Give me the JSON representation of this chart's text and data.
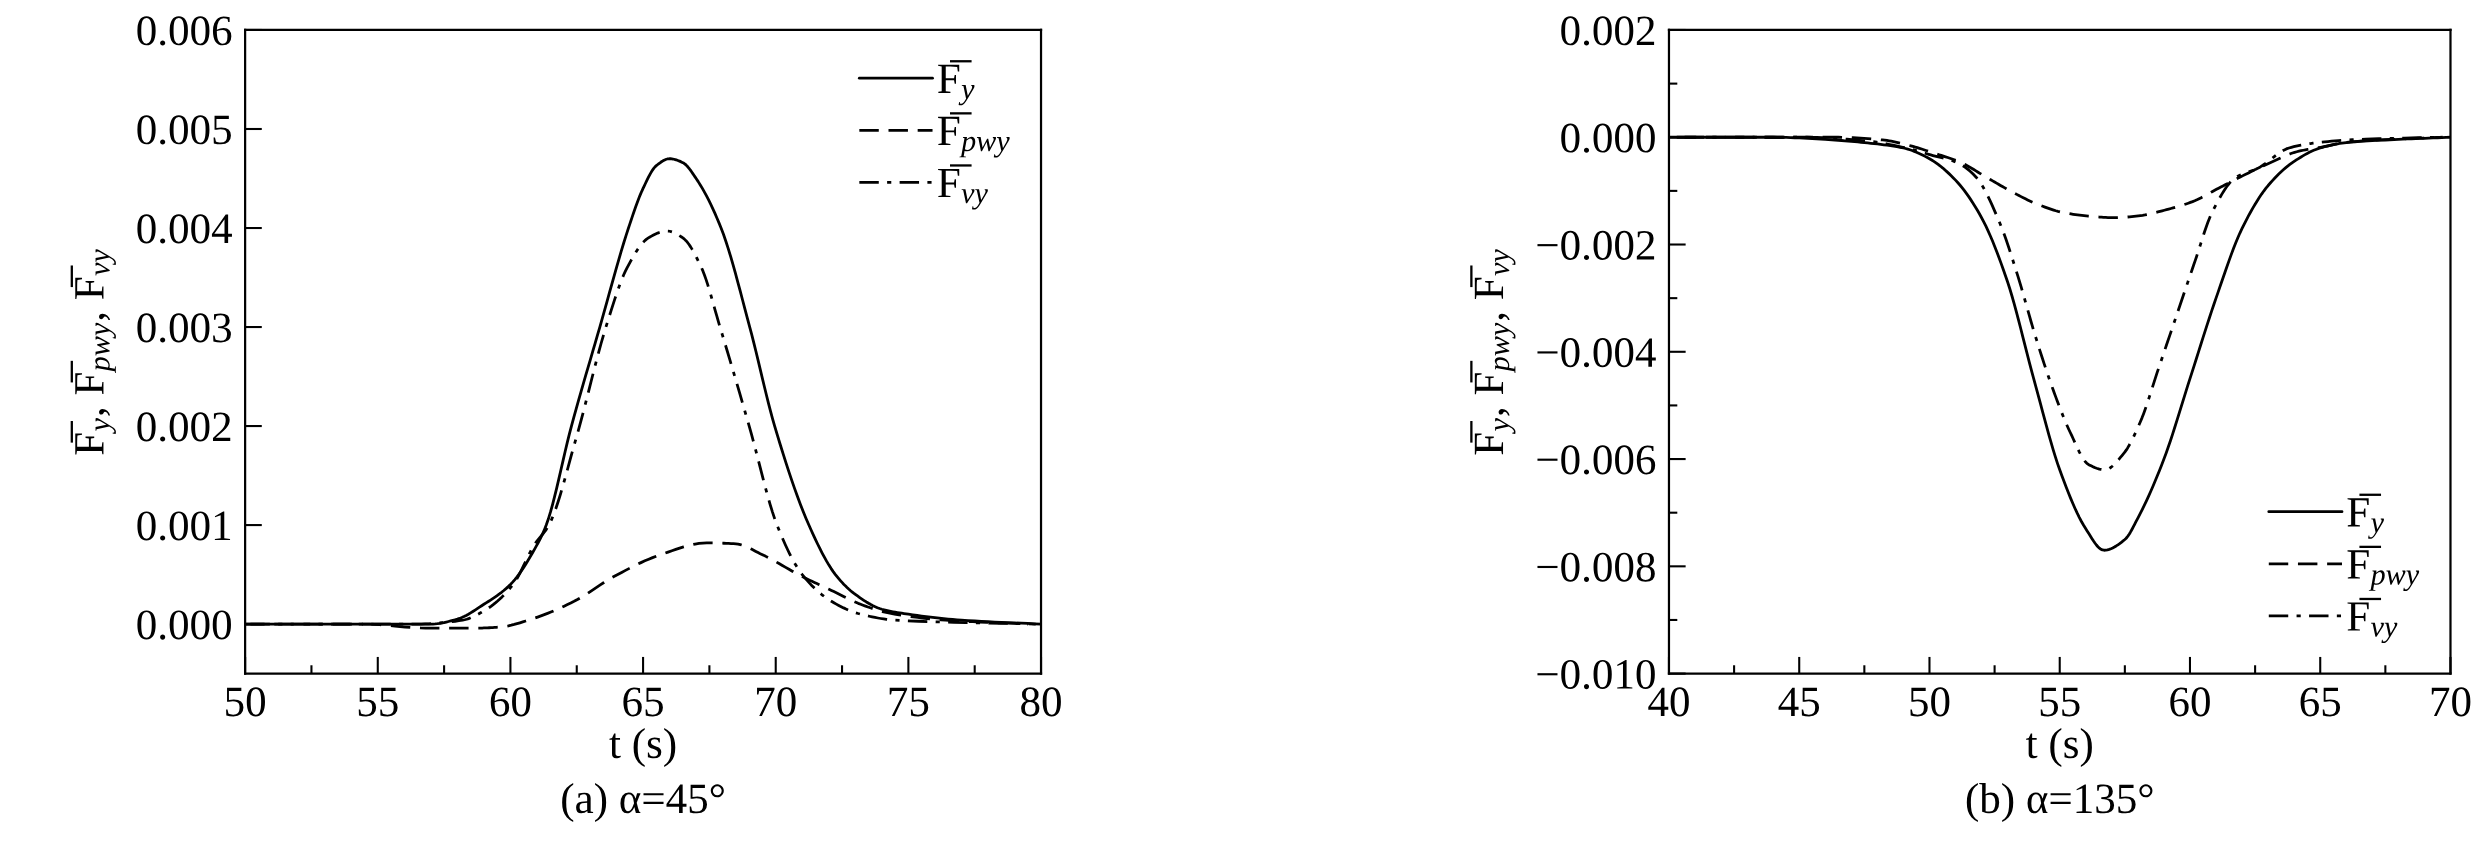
{
  "chart_data": [
    {
      "type": "line",
      "title": "(a) α=45°",
      "xlabel": "t (s)",
      "ylabel": "F̅$_{y}$, F̅$_{pwy}$, F̅$_{vy}$",
      "legend": "top right",
      "xlim": [
        50,
        80
      ],
      "ylim": [
        -0.0005,
        0.006
      ],
      "xticks": [
        50,
        {
          "value": 52.5,
          "label": null
        },
        55,
        {
          "value": 57.5,
          "label": null
        },
        60,
        {
          "value": 62.5,
          "label": null
        },
        65,
        {
          "value": 67.5,
          "label": null
        },
        70,
        {
          "value": 72.5,
          "label": null
        },
        75,
        {
          "value": 77.5,
          "label": null
        },
        80
      ],
      "yticks": [
        {
          "value": 0,
          "label": "0.000"
        },
        {
          "value": 0.001,
          "label": "0.001"
        },
        {
          "value": 0.002,
          "label": "0.002"
        },
        {
          "value": 0.003,
          "label": "0.003"
        },
        {
          "value": 0.004,
          "label": "0.004"
        },
        {
          "value": 0.005,
          "label": "0.005"
        },
        {
          "value": 0.006,
          "label": "0.006"
        }
      ],
      "series": [
        {
          "name": "F̅$_{y}$",
          "color": "#000000",
          "line_style": "solid",
          "x": [
            50,
            55,
            57,
            58,
            59,
            60,
            61,
            61.35,
            62.3,
            63.37,
            64.45,
            65.0,
            65.5,
            66.0,
            66.5,
            67.0,
            67.94,
            69.02,
            69.96,
            71.25,
            72.25,
            73,
            74,
            75,
            77,
            80
          ],
          "values": [
            0,
            0,
            0,
            5e-05,
            0.0002,
            0.0004,
            0.0008,
            0.001,
            0.002,
            0.003,
            0.004,
            0.0044,
            0.00463,
            0.0047,
            0.00466,
            0.0045,
            0.004,
            0.003,
            0.002,
            0.001,
            0.0005,
            0.0003,
            0.00015,
            0.0001,
            4e-05,
            0
          ]
        },
        {
          "name": "F̅$_{pwy}$",
          "color": "#000000",
          "line_style": "dashed",
          "x": [
            50,
            54.5,
            56.8,
            58.8,
            59.6,
            60.9,
            62.4,
            63.9,
            65.65,
            67.4,
            68.5,
            69.5,
            71.0,
            72.1,
            73.2,
            74.3,
            76.4,
            79.5
          ],
          "values": [
            0,
            0,
            -4e-05,
            -4e-05,
            -3e-05,
            6e-05,
            0.00023,
            0.00048,
            0.0007,
            0.00082,
            0.00081,
            0.0007,
            0.00048,
            0.00034,
            0.0002,
            0.00011,
            4e-05,
            0
          ]
        },
        {
          "name": "F̅$_{vy}$",
          "color": "#000000",
          "line_style": "dashdot",
          "x": [
            50.2,
            56.5,
            58.2,
            59.1,
            60.1,
            60.9,
            61.45,
            62.5,
            63.6,
            64.4,
            65.2,
            65.9,
            66.5,
            67.2,
            67.9,
            69.0,
            70.05,
            71.0,
            72.1,
            73.2,
            74.5,
            79.8
          ],
          "values": [
            0,
            0,
            4e-05,
            0.00015,
            0.0004,
            0.0008,
            0.001,
            0.0019,
            0.003,
            0.0036,
            0.0039,
            0.00397,
            0.0039,
            0.0036,
            0.003,
            0.002,
            0.001,
            0.0005,
            0.00023,
            0.0001,
            4e-05,
            0
          ]
        }
      ]
    },
    {
      "type": "line",
      "title": "(b) α=135°",
      "xlabel": "t (s)",
      "ylabel": "F̅$_{y}$, F̅$_{pwy}$, F̅$_{vy}$",
      "legend": "bottom right",
      "xlim": [
        40,
        70
      ],
      "ylim": [
        -0.01,
        0.002
      ],
      "xticks": [
        40,
        {
          "value": 42.5,
          "label": null
        },
        45,
        {
          "value": 47.5,
          "label": null
        },
        50,
        {
          "value": 52.5,
          "label": null
        },
        55,
        {
          "value": 57.5,
          "label": null
        },
        60,
        {
          "value": 62.5,
          "label": null
        },
        65,
        {
          "value": 67.5,
          "label": null
        },
        70
      ],
      "yticks": [
        {
          "value": -0.01,
          "label": "−0.010"
        },
        {
          "value": -0.009,
          "label": null
        },
        {
          "value": -0.008,
          "label": "−0.008"
        },
        {
          "value": -0.007,
          "label": null
        },
        {
          "value": -0.006,
          "label": "−0.006"
        },
        {
          "value": -0.005,
          "label": null
        },
        {
          "value": -0.004,
          "label": "−0.004"
        },
        {
          "value": -0.003,
          "label": null
        },
        {
          "value": -0.002,
          "label": "−0.002"
        },
        {
          "value": -0.001,
          "label": null
        },
        {
          "value": 0,
          "label": "0.000"
        },
        {
          "value": 0.001,
          "label": null
        },
        {
          "value": 0.002,
          "label": "0.002"
        }
      ],
      "series": [
        {
          "name": "F̅$_{y}$",
          "color": "#000000",
          "line_style": "solid",
          "x": [
            40,
            44,
            46,
            47.5,
            49,
            50,
            51,
            52,
            53,
            54,
            55,
            56,
            56.7,
            57.5,
            58,
            59,
            60,
            61,
            62,
            63,
            64,
            65,
            66,
            68,
            70
          ],
          "values": [
            0,
            0,
            -4e-05,
            -0.0001,
            -0.0002,
            -0.0004,
            -0.0008,
            -0.0015,
            -0.0027,
            -0.0045,
            -0.0062,
            -0.0073,
            -0.0077,
            -0.0075,
            -0.0071,
            -0.006,
            -0.0045,
            -0.003,
            -0.0017,
            -0.0009,
            -0.00045,
            -0.0002,
            -0.0001,
            -4e-05,
            0
          ]
        },
        {
          "name": "F̅$_{pwy}$",
          "color": "#000000",
          "line_style": "dashed",
          "x": [
            40.3,
            46.5,
            48.2,
            49.2,
            50.2,
            51.2,
            52.2,
            53.1,
            54.1,
            55.1,
            56.1,
            57.1,
            58.1,
            59.1,
            60.1,
            61.1,
            62.1,
            63.1,
            64.1,
            65.1,
            66.1,
            68.2,
            69.7
          ],
          "values": [
            0,
            0,
            -5e-05,
            -0.00015,
            -0.0003,
            -0.00047,
            -0.00075,
            -0.001,
            -0.00124,
            -0.0014,
            -0.00147,
            -0.0015,
            -0.00146,
            -0.00135,
            -0.0012,
            -0.00095,
            -0.0007,
            -0.00047,
            -0.00027,
            -0.00018,
            -9e-05,
            -3e-05,
            0
          ]
        },
        {
          "name": "F̅$_{vy}$",
          "color": "#000000",
          "line_style": "dashdot",
          "x": [
            40.6,
            45.3,
            47.6,
            49.1,
            50.05,
            51.05,
            51.8,
            52.7,
            53.4,
            54.06,
            54.74,
            55.4,
            56.1,
            56.73,
            57.45,
            58.1,
            58.8,
            59.5,
            60.2,
            60.85,
            61.75,
            62.6,
            63.8,
            64.9,
            66.5,
            69.5
          ],
          "values": [
            0,
            0,
            -7e-05,
            -0.0002,
            -0.00033,
            -0.00047,
            -0.00075,
            -0.0016,
            -0.0026,
            -0.0037,
            -0.0047,
            -0.0055,
            -0.0061,
            -0.0062,
            -0.0059,
            -0.0053,
            -0.0043,
            -0.0033,
            -0.0023,
            -0.0014,
            -0.00075,
            -0.00058,
            -0.0002,
            -0.0001,
            -4e-05,
            0
          ]
        }
      ]
    }
  ]
}
